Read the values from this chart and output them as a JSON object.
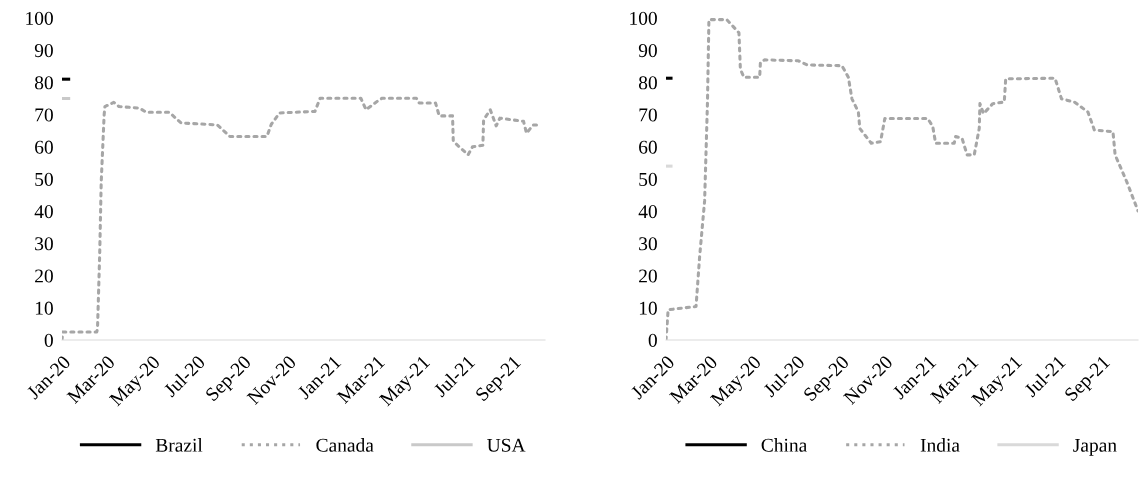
{
  "chart_data": [
    {
      "type": "line",
      "xlim": [
        "2020-01-01",
        "2021-10-15"
      ],
      "ylim": [
        0,
        100
      ],
      "yticks": [
        0,
        10,
        20,
        30,
        40,
        50,
        60,
        70,
        80,
        90,
        100
      ],
      "xticks": [
        {
          "value": "2020-01-01",
          "label": "Jan-20"
        },
        {
          "value": "2020-03-01",
          "label": "Mar-20"
        },
        {
          "value": "2020-05-01",
          "label": "May-20"
        },
        {
          "value": "2020-07-01",
          "label": "Jul-20"
        },
        {
          "value": "2020-09-01",
          "label": "Sep-20"
        },
        {
          "value": "2020-11-01",
          "label": "Nov-20"
        },
        {
          "value": "2021-01-01",
          "label": "Jan-21"
        },
        {
          "value": "2021-03-01",
          "label": "Mar-21"
        },
        {
          "value": "2021-05-01",
          "label": "May-21"
        },
        {
          "value": "2021-07-01",
          "label": "Jul-21"
        },
        {
          "value": "2021-09-01",
          "label": "Sep-21"
        }
      ],
      "grid": false,
      "legend": "bottom",
      "series": [
        {
          "name": "Brazil",
          "color": "#000000",
          "line_style": "solid",
          "x": [
            "2020-01-01",
            "2020-01-10"
          ],
          "values": [
            81,
            81
          ]
        },
        {
          "name": "Canada",
          "color": "#a6a6a6",
          "line_style": "dotted",
          "x": [
            "2020-01-01",
            "2020-01-02",
            "2020-02-17",
            "2020-02-18",
            "2020-02-21",
            "2020-02-23",
            "2020-02-27",
            "2020-02-28",
            "2020-03-11",
            "2020-03-18",
            "2020-04-15",
            "2020-04-24",
            "2020-05-25",
            "2020-06-10",
            "2020-07-29",
            "2020-08-15",
            "2020-10-04",
            "2020-10-10",
            "2020-10-21",
            "2020-12-08",
            "2020-12-15",
            "2021-02-08",
            "2021-02-15",
            "2021-03-05",
            "2021-03-09",
            "2021-04-24",
            "2021-04-28",
            "2021-05-20",
            "2021-05-25",
            "2021-06-12",
            "2021-06-13",
            "2021-06-21",
            "2021-07-03",
            "2021-07-09",
            "2021-07-23",
            "2021-07-24",
            "2021-08-02",
            "2021-08-10",
            "2021-08-15",
            "2021-09-16",
            "2021-09-20",
            "2021-09-29",
            "2021-10-10"
          ],
          "values": [
            0,
            2.5,
            2.5,
            3.5,
            27,
            49,
            70,
            72.5,
            73.8,
            72.5,
            72,
            70.7,
            70.7,
            67.4,
            66.8,
            63.2,
            63.2,
            67,
            70.5,
            71,
            75.1,
            75.1,
            71.5,
            74.6,
            75.1,
            75.1,
            73.6,
            73.6,
            69.6,
            69.6,
            61.7,
            60,
            57.5,
            60,
            60.5,
            68.4,
            71.5,
            66.5,
            68.9,
            67.9,
            64.2,
            66.8,
            66.8
          ]
        },
        {
          "name": "USA",
          "color": "#c9c9c9",
          "line_style": "solid",
          "x": [
            "2020-01-01",
            "2020-01-10"
          ],
          "values": [
            75,
            75
          ]
        }
      ]
    },
    {
      "type": "line",
      "xlim": [
        "2020-01-01",
        "2021-10-22"
      ],
      "ylim": [
        0,
        100
      ],
      "yticks": [
        0,
        10,
        20,
        30,
        40,
        50,
        60,
        70,
        80,
        90,
        100
      ],
      "xticks": [
        {
          "value": "2020-01-01",
          "label": "Jan-20"
        },
        {
          "value": "2020-03-01",
          "label": "Mar-20"
        },
        {
          "value": "2020-05-01",
          "label": "May-20"
        },
        {
          "value": "2020-07-01",
          "label": "Jul-20"
        },
        {
          "value": "2020-09-01",
          "label": "Sep-20"
        },
        {
          "value": "2020-11-01",
          "label": "Nov-20"
        },
        {
          "value": "2021-01-01",
          "label": "Jan-21"
        },
        {
          "value": "2021-03-01",
          "label": "Mar-21"
        },
        {
          "value": "2021-05-01",
          "label": "May-21"
        },
        {
          "value": "2021-07-01",
          "label": "Jul-21"
        },
        {
          "value": "2021-09-01",
          "label": "Sep-21"
        }
      ],
      "grid": false,
      "legend": "bottom",
      "series": [
        {
          "name": "China",
          "color": "#000000",
          "line_style": "solid",
          "x": [
            "2020-01-01",
            "2020-01-08"
          ],
          "values": [
            81.3,
            81.3
          ]
        },
        {
          "name": "India",
          "color": "#a6a6a6",
          "line_style": "dotted",
          "x": [
            "2020-01-01",
            "2020-01-04",
            "2020-02-12",
            "2020-02-17",
            "2020-02-24",
            "2020-02-28",
            "2020-03-01",
            "2020-03-26",
            "2020-04-12",
            "2020-04-14",
            "2020-04-19",
            "2020-05-11",
            "2020-05-12",
            "2020-05-18",
            "2020-07-04",
            "2020-07-17",
            "2020-09-03",
            "2020-09-12",
            "2020-09-17",
            "2020-09-26",
            "2020-09-28",
            "2020-10-14",
            "2020-10-27",
            "2020-11-02",
            "2021-01-01",
            "2021-01-08",
            "2021-01-12",
            "2021-02-07",
            "2021-02-09",
            "2021-02-18",
            "2021-02-25",
            "2021-03-07",
            "2021-03-14",
            "2021-03-15",
            "2021-03-20",
            "2021-04-02",
            "2021-04-18",
            "2021-04-20",
            "2021-06-28",
            "2021-07-07",
            "2021-07-25",
            "2021-08-13",
            "2021-08-22",
            "2021-09-17",
            "2021-09-20",
            "2021-10-06",
            "2021-10-22"
          ],
          "values": [
            0,
            9.4,
            10.4,
            25.8,
            43.2,
            73.9,
            99.5,
            99.5,
            95.4,
            84.1,
            81.6,
            81.6,
            86.2,
            87,
            86.7,
            85.4,
            85.2,
            81.6,
            74.9,
            70.8,
            65.7,
            61.1,
            61.6,
            68.8,
            68.8,
            66.3,
            61.1,
            61.1,
            63.2,
            62.6,
            57.5,
            57.5,
            65.7,
            73.4,
            70.3,
            73.4,
            73.9,
            81.1,
            81.3,
            74.9,
            73.9,
            70.8,
            65.2,
            64.7,
            57.5,
            49.3,
            40.1
          ]
        },
        {
          "name": "Japan",
          "color": "#d9d9d9",
          "line_style": "solid",
          "x": [
            "2020-01-01",
            "2020-01-08"
          ],
          "values": [
            54,
            54
          ]
        }
      ]
    }
  ]
}
